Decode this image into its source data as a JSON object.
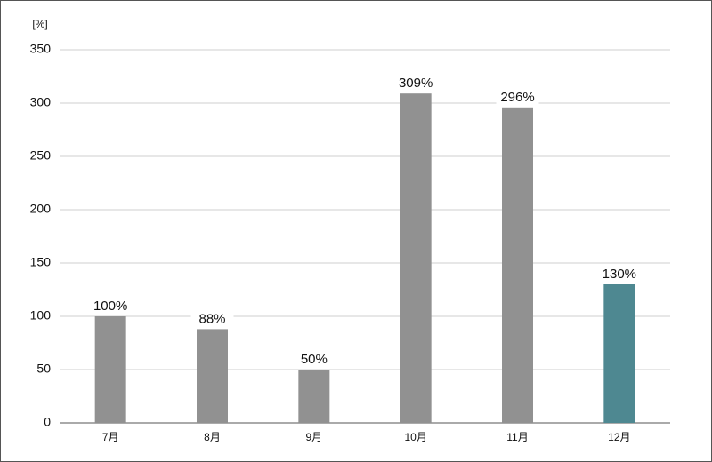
{
  "chart_data": {
    "type": "bar",
    "y_label": "[%]",
    "categories": [
      "7月",
      "8月",
      "9月",
      "10月",
      "11月",
      "12月"
    ],
    "values": [
      100,
      88,
      50,
      309,
      296,
      130
    ],
    "value_labels": [
      "100%",
      "88%",
      "50%",
      "309%",
      "296%",
      "130%"
    ],
    "colors": [
      "#919191",
      "#919191",
      "#919191",
      "#919191",
      "#919191",
      "#4e8891"
    ],
    "ylim": [
      0,
      350
    ],
    "yticks": [
      0,
      50,
      100,
      150,
      200,
      250,
      300,
      350
    ],
    "grid": true
  }
}
